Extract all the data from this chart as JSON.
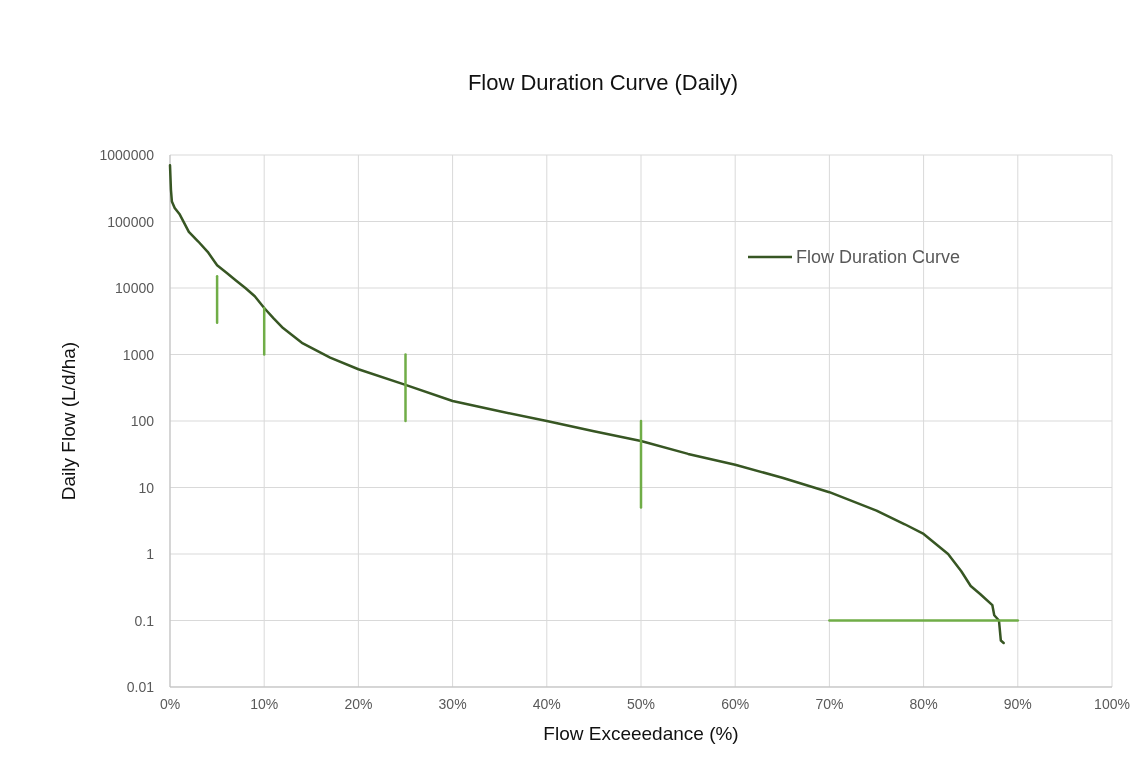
{
  "chart_data": {
    "type": "line",
    "title": "Flow Duration Curve (Daily)",
    "xlabel": "Flow Exceeedance (%)",
    "ylabel": "Daily Flow (L/d/ha)",
    "log": "y",
    "grid": true,
    "legend": "top right",
    "marker": "none",
    "line_style": "solid",
    "xlim": [
      0,
      100
    ],
    "xticks": [
      {
        "value": 0,
        "label": "0%"
      },
      {
        "value": 10,
        "label": "10%"
      },
      {
        "value": 20,
        "label": "20%"
      },
      {
        "value": 30,
        "label": "30%"
      },
      {
        "value": 40,
        "label": "40%"
      },
      {
        "value": 50,
        "label": "50%"
      },
      {
        "value": 60,
        "label": "60%"
      },
      {
        "value": 70,
        "label": "70%"
      },
      {
        "value": 80,
        "label": "80%"
      },
      {
        "value": 90,
        "label": "90%"
      },
      {
        "value": 100,
        "label": "100%"
      }
    ],
    "ylim": [
      0.01,
      1000000
    ],
    "yticks": [
      0.01,
      0.1,
      1,
      10,
      100,
      1000,
      10000,
      100000,
      1000000
    ],
    "series": [
      {
        "name": "Flow Duration Curve",
        "color": "#375623",
        "x": [
          0,
          0.1,
          0.2,
          0.5,
          1,
          2,
          3,
          4,
          5,
          6,
          7,
          8,
          9,
          10,
          11,
          12,
          14,
          17,
          20,
          25,
          30,
          35,
          40,
          45,
          50,
          55,
          60,
          65,
          70,
          75,
          78,
          80,
          82.6,
          84,
          85,
          86,
          87.3,
          87.5,
          88,
          88.2,
          88.5
        ],
        "values": [
          700000,
          300000,
          200000,
          160000,
          130000,
          70000,
          50000,
          35000,
          22000,
          17000,
          13000,
          10000,
          7500,
          5000,
          3500,
          2500,
          1500,
          900,
          600,
          350,
          200,
          140,
          100,
          70,
          50,
          32,
          22,
          14,
          8.5,
          4.5,
          2.8,
          2,
          1,
          0.55,
          0.33,
          0.25,
          0.17,
          0.12,
          0.1,
          0.05,
          0.046
        ]
      },
      {
        "color": "#70ad47",
        "x": [
          5,
          5
        ],
        "values": [
          3000,
          15000
        ]
      },
      {
        "color": "#70ad47",
        "x": [
          10,
          10
        ],
        "values": [
          1000,
          5000
        ]
      },
      {
        "color": "#70ad47",
        "x": [
          25,
          25
        ],
        "values": [
          100,
          1000
        ]
      },
      {
        "color": "#70ad47",
        "x": [
          50,
          50
        ],
        "values": [
          5,
          100
        ]
      },
      {
        "color": "#70ad47",
        "x": [
          70,
          90
        ],
        "values": [
          0.1,
          0.1
        ]
      }
    ]
  }
}
